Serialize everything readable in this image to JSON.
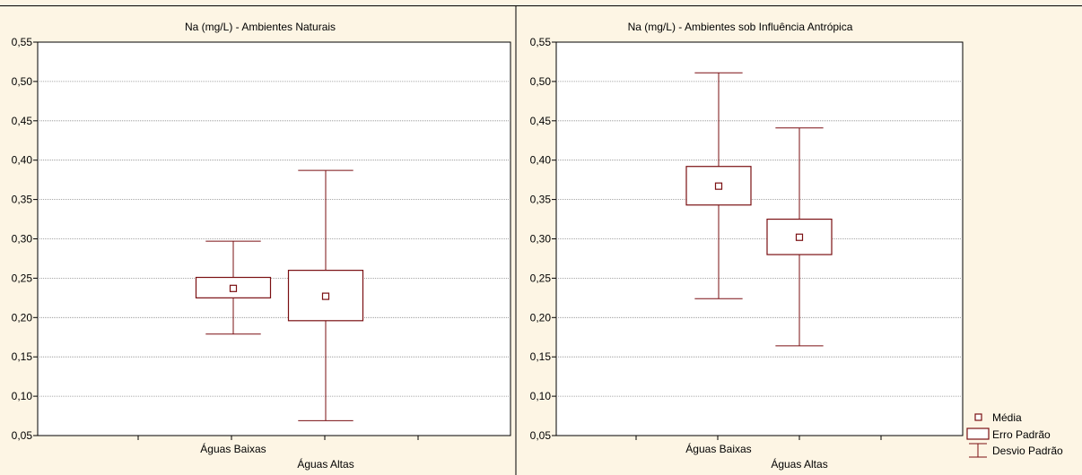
{
  "theme": {
    "background": "#fdf5e4",
    "plot_background": "#ffffff",
    "mark_color": "#7a0f12",
    "grid_color": "#8c8c8c"
  },
  "chart_data": [
    {
      "type": "boxplot",
      "title": "Na (mg/L) - Ambientes Naturais",
      "xlabel": "",
      "ylabel": "",
      "ylim": [
        0.05,
        0.55
      ],
      "yticks": [
        "0,05",
        "0,10",
        "0,15",
        "0,20",
        "0,25",
        "0,30",
        "0,35",
        "0,40",
        "0,45",
        "0,50",
        "0,55"
      ],
      "grid": true,
      "categories": [
        "Águas Baixas",
        "Águas Altas"
      ],
      "boxes": [
        {
          "category": "Águas Baixas",
          "mean": 0.237,
          "se_low": 0.225,
          "se_high": 0.251,
          "sd_low": 0.179,
          "sd_high": 0.297
        },
        {
          "category": "Águas Altas",
          "mean": 0.227,
          "se_low": 0.196,
          "se_high": 0.26,
          "sd_low": 0.069,
          "sd_high": 0.387
        }
      ]
    },
    {
      "type": "boxplot",
      "title": "Na (mg/L) - Ambientes sob Influência Antrópica",
      "xlabel": "",
      "ylabel": "",
      "ylim": [
        0.05,
        0.55
      ],
      "yticks": [
        "0,05",
        "0,10",
        "0,15",
        "0,20",
        "0,25",
        "0,30",
        "0,35",
        "0,40",
        "0,45",
        "0,50",
        "0,55"
      ],
      "grid": true,
      "categories": [
        "Águas Baixas",
        "Águas Altas"
      ],
      "boxes": [
        {
          "category": "Águas Baixas",
          "mean": 0.367,
          "se_low": 0.343,
          "se_high": 0.392,
          "sd_low": 0.224,
          "sd_high": 0.511
        },
        {
          "category": "Águas Altas",
          "mean": 0.302,
          "se_low": 0.28,
          "se_high": 0.325,
          "sd_low": 0.164,
          "sd_high": 0.441
        }
      ]
    }
  ],
  "legend": {
    "placement": "bottom-right",
    "items": [
      {
        "label": "Média",
        "symbol": "mean-square"
      },
      {
        "label": "Erro Padrão",
        "symbol": "box"
      },
      {
        "label": "Desvio Padrão",
        "symbol": "whisker"
      }
    ]
  }
}
